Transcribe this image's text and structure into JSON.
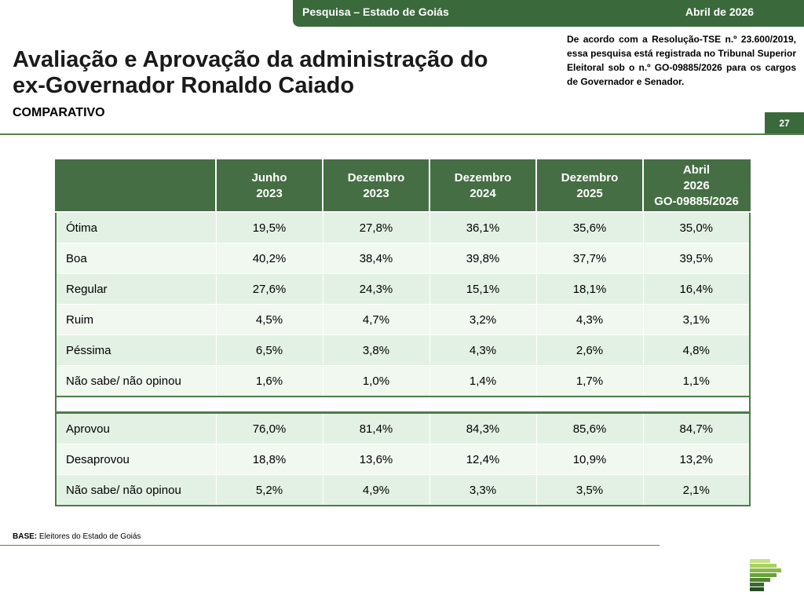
{
  "header": {
    "survey": "Pesquisa – Estado de Goiás",
    "date": "Abril de 2026"
  },
  "title_line1": "Avaliação e Aprovação da administração do",
  "title_line2": "ex-Governador Ronaldo Caiado",
  "subtitle": "COMPARATIVO",
  "legal_note": "De acordo com a Resolução-TSE n.º 23.600/2019, essa pesquisa está registrada no Tribunal Superior Eleitoral sob o n.º GO-09885/2026 para os cargos de Governador e Senador.",
  "page_number": "27",
  "table": {
    "columns": [
      {
        "l1": "Junho",
        "l2": "2023",
        "l3": ""
      },
      {
        "l1": "Dezembro",
        "l2": "2023",
        "l3": ""
      },
      {
        "l1": "Dezembro",
        "l2": "2024",
        "l3": ""
      },
      {
        "l1": "Dezembro",
        "l2": "2025",
        "l3": ""
      },
      {
        "l1": "Abril",
        "l2": "2026",
        "l3": "GO-09885/2026"
      }
    ],
    "evaluation_rows": [
      {
        "label": "Ótima",
        "values": [
          "19,5%",
          "27,8%",
          "36,1%",
          "35,6%",
          "35,0%"
        ]
      },
      {
        "label": "Boa",
        "values": [
          "40,2%",
          "38,4%",
          "39,8%",
          "37,7%",
          "39,5%"
        ]
      },
      {
        "label": "Regular",
        "values": [
          "27,6%",
          "24,3%",
          "15,1%",
          "18,1%",
          "16,4%"
        ]
      },
      {
        "label": "Ruim",
        "values": [
          "4,5%",
          "4,7%",
          "3,2%",
          "4,3%",
          "3,1%"
        ]
      },
      {
        "label": "Péssima",
        "values": [
          "6,5%",
          "3,8%",
          "4,3%",
          "2,6%",
          "4,8%"
        ]
      },
      {
        "label": "Não sabe/ não opinou",
        "values": [
          "1,6%",
          "1,0%",
          "1,4%",
          "1,7%",
          "1,1%"
        ]
      }
    ],
    "approval_rows": [
      {
        "label": "Aprovou",
        "values": [
          "76,0%",
          "81,4%",
          "84,3%",
          "85,6%",
          "84,7%"
        ]
      },
      {
        "label": "Desaprovou",
        "values": [
          "18,8%",
          "13,6%",
          "12,4%",
          "10,9%",
          "13,2%"
        ]
      },
      {
        "label": "Não sabe/ não opinou",
        "values": [
          "5,2%",
          "4,9%",
          "3,3%",
          "3,5%",
          "2,1%"
        ]
      }
    ]
  },
  "footer": {
    "base_label": "BASE:",
    "base_text": " Eleitores do Estado de Goiás"
  },
  "colors": {
    "brand_green": "#3a6a3b",
    "header_green": "#466e44",
    "row_light": "#e3f1e4",
    "row_lighter": "#f0f8f0"
  },
  "logo_icon": "institute-logo-icon"
}
